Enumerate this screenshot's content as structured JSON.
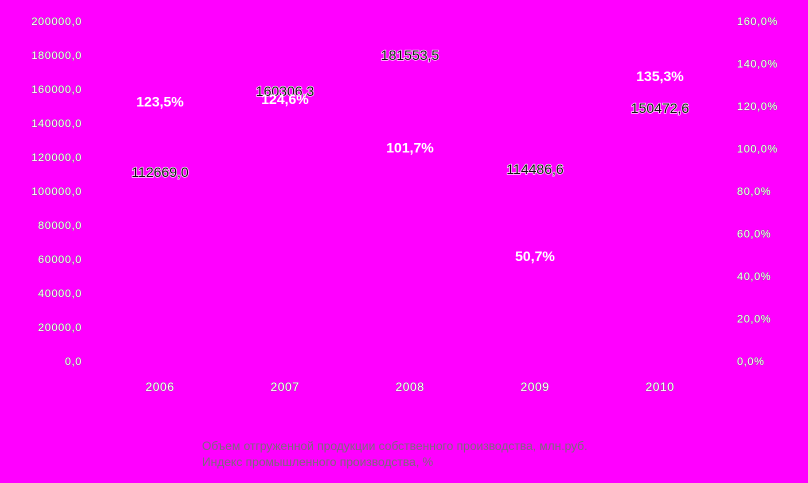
{
  "chart_data": {
    "type": "line",
    "categories": [
      "2006",
      "2007",
      "2008",
      "2009",
      "2010"
    ],
    "series": [
      {
        "name": "Объем отгруженной продукции собственного производства, млн.руб.",
        "axis": "left",
        "values": [
          112669.0,
          160306.3,
          181553.5,
          114486.6,
          150472.6
        ],
        "value_labels": [
          "112669,0",
          "160306,3",
          "181553,5",
          "114486,6",
          "150472,6"
        ]
      },
      {
        "name": "Индекс промышленного производства, %",
        "axis": "right",
        "values": [
          123.5,
          124.6,
          101.7,
          50.7,
          135.3
        ],
        "value_labels": [
          "123,5%",
          "124,6%",
          "101,7%",
          "50,7%",
          "135,3%"
        ]
      }
    ],
    "y_left": {
      "range": [
        0,
        200000
      ],
      "tick_labels": [
        "0,0",
        "20000,0",
        "40000,0",
        "60000,0",
        "80000,0",
        "100000,0",
        "120000,0",
        "140000,0",
        "160000,0",
        "180000,0",
        "200000,0"
      ]
    },
    "y_right": {
      "range": [
        0,
        160
      ],
      "tick_labels": [
        "0,0%",
        "20,0%",
        "40,0%",
        "60,0%",
        "80,0%",
        "100,0%",
        "120,0%",
        "140,0%",
        "160,0%"
      ]
    },
    "legend_position": "bottom",
    "grid": false
  }
}
